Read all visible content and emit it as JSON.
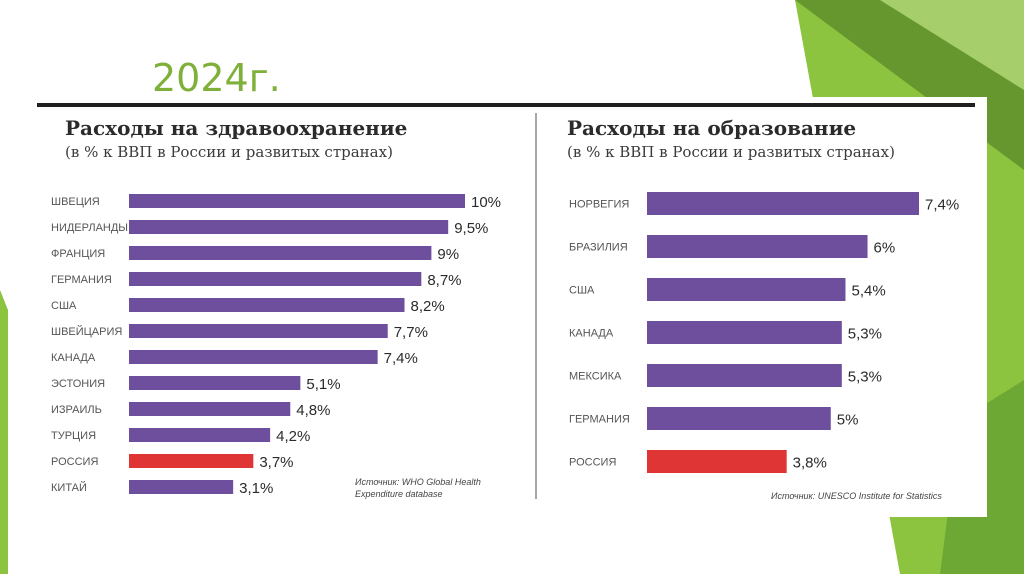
{
  "slide": {
    "title": "2024г."
  },
  "colors": {
    "bar": "#6e4f9e",
    "highlight": "#e03535",
    "accent": "#7fb13a"
  },
  "chart_data": [
    {
      "type": "bar",
      "orientation": "horizontal",
      "title": "Расходы на здравоохранение",
      "subtitle": "(в % к ВВП в России и развитых странах)",
      "source": [
        "Источник: WHO Global Health",
        "Expenditure database"
      ],
      "categories": [
        "ШВЕЦИЯ",
        "НИДЕРЛАНДЫ",
        "ФРАНЦИЯ",
        "ГЕРМАНИЯ",
        "США",
        "ШВЕЙЦАРИЯ",
        "КАНАДА",
        "ЭСТОНИЯ",
        "ИЗРАИЛЬ",
        "ТУРЦИЯ",
        "РОССИЯ",
        "КИТАЙ"
      ],
      "values": [
        10,
        9.5,
        9,
        8.7,
        8.2,
        7.7,
        7.4,
        5.1,
        4.8,
        4.2,
        3.7,
        3.1
      ],
      "labels": [
        "10%",
        "9,5%",
        "9%",
        "8,7%",
        "8,2%",
        "7,7%",
        "7,4%",
        "5,1%",
        "4,8%",
        "4,2%",
        "3,7%",
        "3,1%"
      ],
      "highlight": "РОССИЯ",
      "xlim": [
        0,
        10
      ]
    },
    {
      "type": "bar",
      "orientation": "horizontal",
      "title": "Расходы на образование",
      "subtitle": "(в % к ВВП в России и развитых странах)",
      "source": [
        "Источник: UNESCO Institute for Statistics"
      ],
      "categories": [
        "НОРВЕГИЯ",
        "БРАЗИЛИЯ",
        "США",
        "КАНАДА",
        "МЕКСИКА",
        "ГЕРМАНИЯ",
        "РОССИЯ"
      ],
      "values": [
        7.4,
        6,
        5.4,
        5.3,
        5.3,
        5,
        3.8
      ],
      "labels": [
        "7,4%",
        "6%",
        "5,4%",
        "5,3%",
        "5,3%",
        "5%",
        "3,8%"
      ],
      "highlight": "РОССИЯ",
      "xlim": [
        0,
        7.4
      ]
    }
  ]
}
